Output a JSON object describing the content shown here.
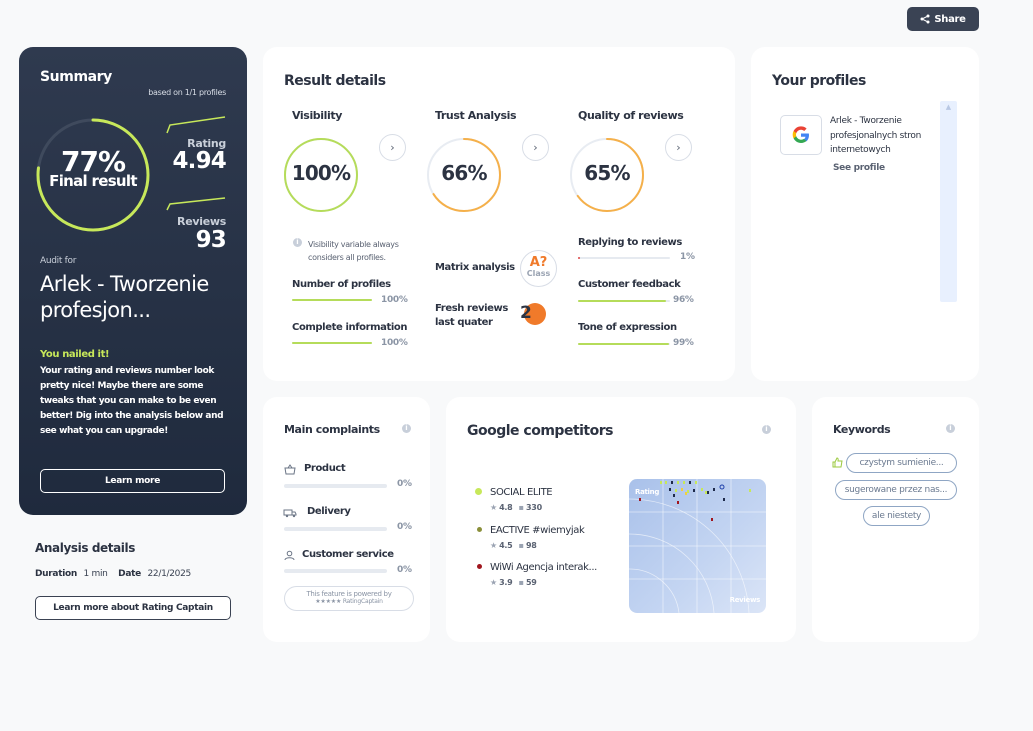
{
  "share": {
    "label": "Share"
  },
  "summary": {
    "title": "Summary",
    "based_on": "based on 1/1 profiles",
    "final_pct": "77%",
    "final_pct_value": 77,
    "final_label": "Final result",
    "rating_label": "Rating",
    "rating_value": "4.94",
    "reviews_label": "Reviews",
    "reviews_value": "93",
    "audit_for": "Audit for",
    "audit_name": "Arlek - Tworzenie profesjon...",
    "nailed_title": "You nailed it!",
    "nailed_text": "Your rating and reviews number look pretty nice! Maybe there are some tweaks that you can make to be even better! Dig into the analysis below and see what you can upgrade!",
    "learn_more": "Learn more"
  },
  "analysis": {
    "title": "Analysis details",
    "duration_label": "Duration",
    "duration_value": "1 min",
    "date_label": "Date",
    "date_value": "22/1/2025",
    "button": "Learn more about Rating Captain"
  },
  "result": {
    "title": "Result details",
    "visibility": {
      "title": "Visibility",
      "pct": "100%",
      "value": 100,
      "color": "#b5dc5a",
      "note": "Visibility variable always considers all profiles.",
      "items": [
        {
          "label": "Number of profiles",
          "pct": "100%",
          "value": 100
        },
        {
          "label": "Complete information",
          "pct": "100%",
          "value": 100
        }
      ]
    },
    "trust": {
      "title": "Trust Analysis",
      "pct": "66%",
      "value": 66,
      "color": "#f5b04a",
      "matrix_label": "Matrix analysis",
      "matrix_grade": "A?",
      "matrix_class": "Class",
      "fresh_label": "Fresh reviews last quater",
      "fresh_value": "2"
    },
    "quality": {
      "title": "Quality of reviews",
      "pct": "65%",
      "value": 65,
      "color": "#f5b04a",
      "items": [
        {
          "label": "Replying to reviews",
          "pct": "1%",
          "value": 1,
          "color": "#e04848"
        },
        {
          "label": "Customer feedback",
          "pct": "96%",
          "value": 96,
          "color": "#b5dc5a"
        },
        {
          "label": "Tone of expression",
          "pct": "99%",
          "value": 99,
          "color": "#b5dc5a"
        }
      ]
    }
  },
  "profiles": {
    "title": "Your profiles",
    "name": "Arlek - Tworzenie profesjonalnych stron internetowych",
    "see": "See profile",
    "icon": "google-icon"
  },
  "complaints": {
    "title": "Main complaints",
    "items": [
      {
        "label": "Product",
        "pct": "0%",
        "icon": "basket-icon"
      },
      {
        "label": "Delivery",
        "pct": "0%",
        "icon": "truck-icon"
      },
      {
        "label": "Customer service",
        "pct": "0%",
        "icon": "person-icon"
      }
    ],
    "powered": "This feature is powered by",
    "brand": "★★★★★ RatingCaptain"
  },
  "competitors": {
    "title": "Google competitors",
    "items": [
      {
        "name": "SOCIAL ELITE",
        "rating": "4.8",
        "reviews": "330",
        "color": "#c7e85a"
      },
      {
        "name": "EACTIVE #wiemyjak",
        "rating": "4.5",
        "reviews": "98",
        "color": "#8a8f3a"
      },
      {
        "name": "WiWi Agencja interak...",
        "rating": "3.9",
        "reviews": "59",
        "color": "#a0161e"
      }
    ],
    "chart_rating": "Rating",
    "chart_reviews": "Reviews"
  },
  "keywords": {
    "title": "Keywords",
    "items": [
      "czystym sumienie...",
      "sugerowane przez nas...",
      "ale niestety"
    ]
  }
}
